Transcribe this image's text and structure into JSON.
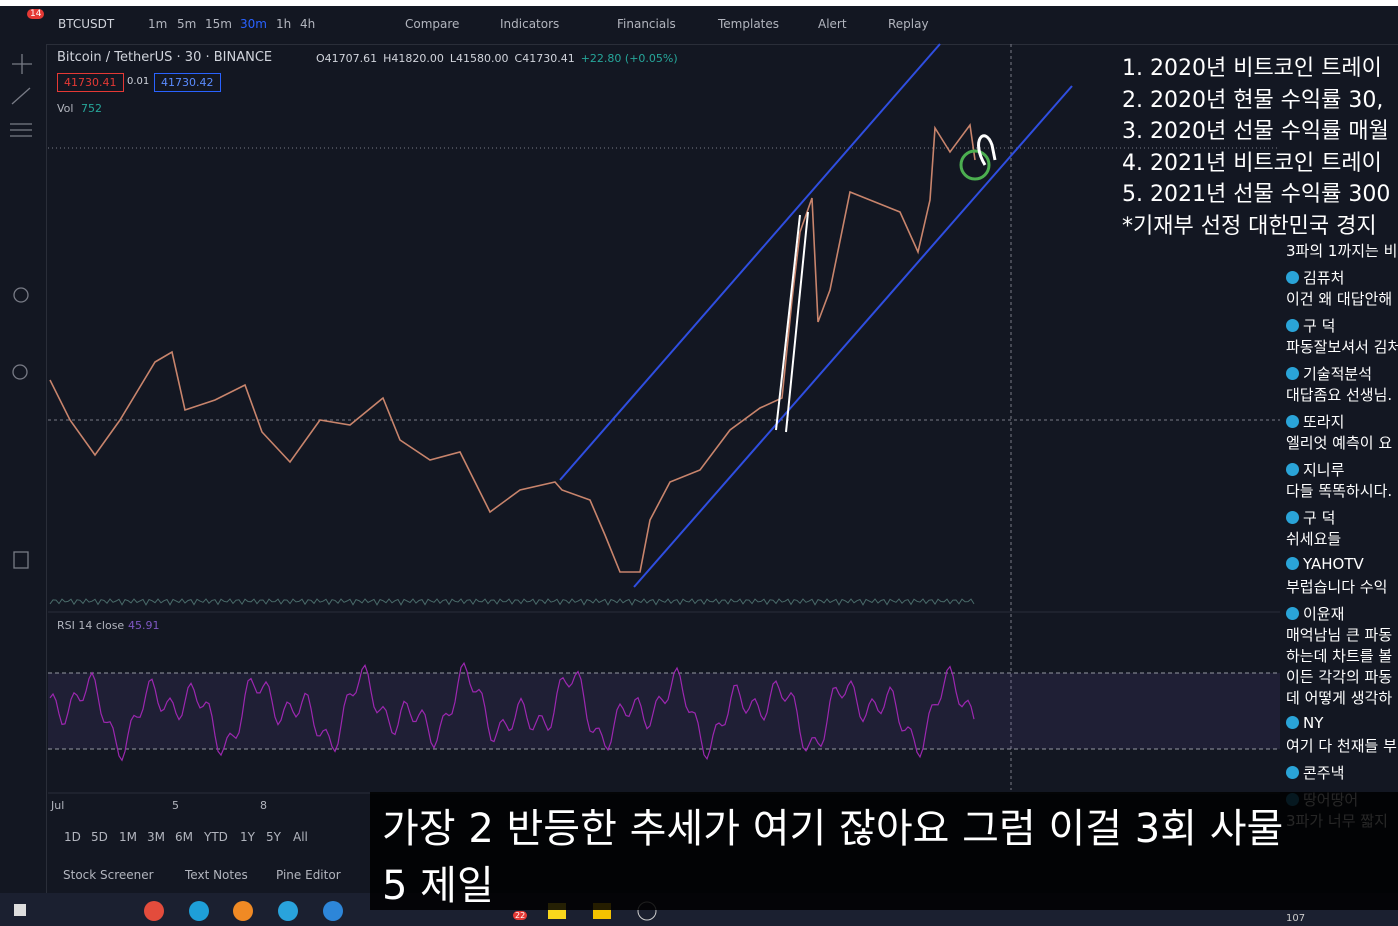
{
  "toolbar": {
    "badge": "14",
    "symbol": "BTCUSDT",
    "intervals": [
      "1m",
      "5m",
      "15m",
      "30m",
      "1h",
      "4h"
    ],
    "buttons": [
      "Compare",
      "Indicators",
      "Financials",
      "Templates",
      "Alert",
      "Replay"
    ]
  },
  "legend": {
    "title": "Bitcoin / TetherUS · 30 · BINANCE",
    "ohlc": [
      "O41707.61",
      "H41820.00",
      "L41580.00",
      "C41730.41",
      "+22.80 (+0.05%)"
    ],
    "bid": "41730.41",
    "spread": "0.01",
    "ask": "41730.42",
    "volume_label": "Vol",
    "volume": "752"
  },
  "rsi": {
    "label": "RSI 14 close",
    "value": "45.91"
  },
  "notes": [
    "1. 2020년 비트코인 트레이",
    "2. 2020년 현물 수익률 30,",
    "3. 2020년 선물 수익률 매월",
    "4. 2021년 비트코인 트레이",
    "5. 2021년 선물 수익률 300",
    "*기재부 선정 대한민국 경지"
  ],
  "time_axis": [
    "Jul",
    "5",
    "8"
  ],
  "ranges": [
    "1D",
    "5D",
    "1M",
    "3M",
    "6M",
    "YTD",
    "1Y",
    "5Y",
    "All"
  ],
  "tabs": [
    "Stock Screener",
    "Text Notes",
    "Pine Editor"
  ],
  "chat": [
    {
      "lines": [
        "3파의 1까지는 비"
      ]
    },
    {
      "name": "김퓨처",
      "lines": [
        "이건 왜 대답안해"
      ]
    },
    {
      "name": "구 덕",
      "lines": [
        "파동잘보셔서 김처"
      ]
    },
    {
      "name": "기술적분석",
      "lines": [
        "대답좀요 선생님."
      ]
    },
    {
      "name": "또라지",
      "lines": [
        "엘리엇 예측이 요"
      ]
    },
    {
      "name": "지니루",
      "lines": [
        "다들 똑똑하시다."
      ]
    },
    {
      "name": "구 덕",
      "lines": [
        "쉬세요들"
      ]
    },
    {
      "name": "YAHOTV",
      "lines": [
        "부럽습니다 수익"
      ]
    },
    {
      "name": "이윤재",
      "lines": [
        "매억남님 큰 파동",
        "하는데 차트를 볼",
        "이든 각각의 파동",
        "데 어떻게 생각하"
      ]
    },
    {
      "name": "NY",
      "lines": [
        "여기 다 천재들 부"
      ]
    },
    {
      "name": "콘주낵",
      "lines": []
    },
    {
      "name": "땅어땅어",
      "lines": [
        "3파가 너무 짧지"
      ]
    }
  ],
  "viewer_count": "107",
  "subtitle": [
    "가장 2 반등한 추세가 여기 잖아요 그럼 이걸 3회 사물",
    "5 제일"
  ],
  "taskbar_badge": "22"
}
